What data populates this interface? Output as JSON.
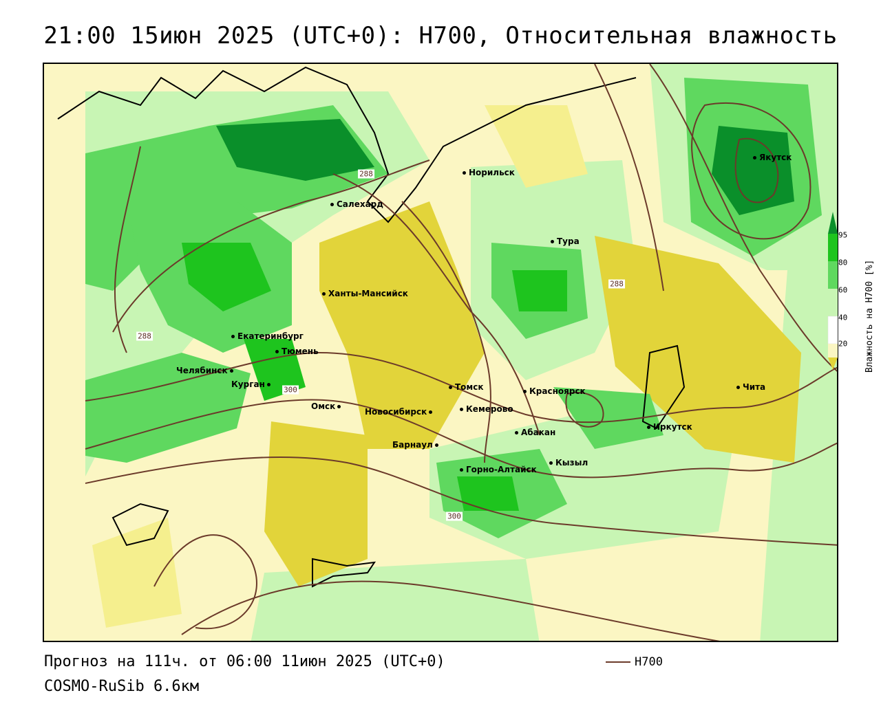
{
  "title": "21:00 15июн 2025 (UTC+0): H700, Относительная влажность",
  "footer": {
    "forecast": "Прогноз на 111ч. от 06:00 11июн 2025 (UTC+0)",
    "model": "COSMO-RuSib 6.6км",
    "legend_label": "H700",
    "legend_color": "#6b3a2a"
  },
  "legend": {
    "title": "Влажность на H700 [%]",
    "ticks": [
      "95",
      "80",
      "60",
      "40",
      "20"
    ],
    "colors": {
      "dry": "#e2d43a",
      "mid_dry": "#f5ef8e",
      "light_dry": "#fbf6c3",
      "light_moist": "#c8f5b4",
      "moist": "#5fd85f",
      "very_moist": "#1ec41e",
      "saturated": "#0a8f2a"
    }
  },
  "contour_labels": [
    "288",
    "288",
    "288",
    "300",
    "300"
  ],
  "cities": [
    {
      "name": "Якутск"
    },
    {
      "name": "Норильск"
    },
    {
      "name": "Салехард"
    },
    {
      "name": "Тура"
    },
    {
      "name": "Ханты-Мансийск"
    },
    {
      "name": "Екатеринбург"
    },
    {
      "name": "Тюмень"
    },
    {
      "name": "Челябинск"
    },
    {
      "name": "Курган"
    },
    {
      "name": "Омск"
    },
    {
      "name": "Новосибирск"
    },
    {
      "name": "Томск"
    },
    {
      "name": "Кемерово"
    },
    {
      "name": "Красноярск"
    },
    {
      "name": "Абакан"
    },
    {
      "name": "Барнаул"
    },
    {
      "name": "Горно-Алтайск"
    },
    {
      "name": "Кызыл"
    },
    {
      "name": "Иркутск"
    },
    {
      "name": "Чита"
    }
  ]
}
